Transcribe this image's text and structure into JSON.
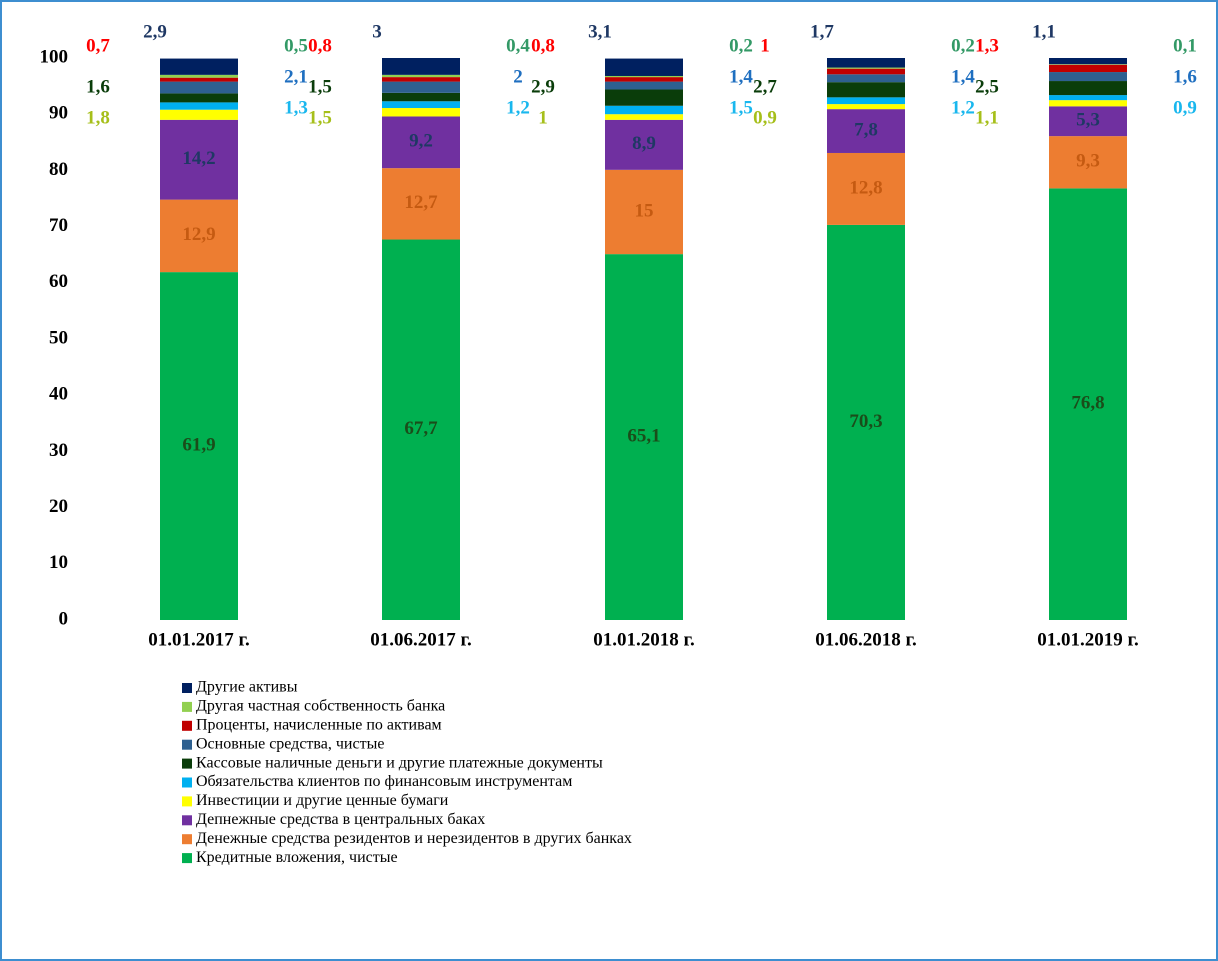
{
  "chart_data": {
    "type": "stacked_bar",
    "categories": [
      "01.01.2017 г.",
      "01.06.2017 г.",
      "01.01.2018 г.",
      "01.06.2018 г.",
      "01.01.2019 г."
    ],
    "ylim": [
      0,
      100
    ],
    "yticks": [
      0,
      10,
      20,
      30,
      40,
      50,
      60,
      70,
      80,
      90,
      100
    ],
    "grid": false,
    "series": [
      {
        "name": "Кредитные вложения, чистые",
        "color": "#00b050",
        "values": [
          61.9,
          67.7,
          65.1,
          70.3,
          76.8
        ],
        "value_labels": [
          "61,9",
          "67,7",
          "65,1",
          "70,3",
          "76,8"
        ]
      },
      {
        "name": "Денежные средства резидентов и нерезидентов в других банках",
        "color": "#ed7d31",
        "values": [
          12.9,
          12.7,
          15,
          12.8,
          9.3
        ],
        "value_labels": [
          "12,9",
          "12,7",
          "15",
          "12,8",
          "9,3"
        ]
      },
      {
        "name": "Депнежные средства в центральных баках",
        "color": "#7030a0",
        "values": [
          14.2,
          9.2,
          8.9,
          7.8,
          5.3
        ],
        "value_labels": [
          "14,2",
          "9,2",
          "8,9",
          "7,8",
          "5,3"
        ]
      },
      {
        "name": "Инвестиции и другие ценные бумаги",
        "color": "#ffff00",
        "values": [
          1.8,
          1.5,
          1,
          0.9,
          1.1
        ],
        "value_labels": [
          "1,8",
          "1,5",
          "1",
          "0,9",
          "1,1"
        ]
      },
      {
        "name": "Обязательства клиентов по финансовым инструментам",
        "color": "#00b0f0",
        "values": [
          1.3,
          1.2,
          1.5,
          1.2,
          0.9
        ],
        "value_labels": [
          "1,3",
          "1,2",
          "1,5",
          "1,2",
          "0,9"
        ]
      },
      {
        "name": "Кассовые наличные деньги и другие платежные документы",
        "color": "#0a3d0a",
        "values": [
          1.6,
          1.5,
          2.9,
          2.7,
          2.5
        ],
        "value_labels": [
          "1,6",
          "1,5",
          "2,9",
          "2,7",
          "2,5"
        ]
      },
      {
        "name": "Основные средства, чистые",
        "color": "#2e6090",
        "values": [
          2.1,
          2,
          1.4,
          1.4,
          1.6
        ],
        "value_labels": [
          "2,1",
          "2",
          "1,4",
          "1,4",
          "1,6"
        ]
      },
      {
        "name": "Проценты, начисленные по активам",
        "color": "#c00000",
        "values": [
          0.7,
          0.8,
          0.8,
          1,
          1.3
        ],
        "value_labels": [
          "0,7",
          "0,8",
          "0,8",
          "1",
          "1,3"
        ]
      },
      {
        "name": "Другая частная собственность банка",
        "color": "#92d050",
        "values": [
          0.5,
          0.4,
          0.2,
          0.2,
          0.1
        ],
        "value_labels": [
          "0,5",
          "0,4",
          "0,2",
          "0,2",
          "0,1"
        ]
      },
      {
        "name": "Другие активы",
        "color": "#002060",
        "values": [
          2.9,
          3,
          3.1,
          1.7,
          1.1
        ],
        "value_labels": [
          "2,9",
          "3",
          "3,1",
          "1,7",
          "1,1"
        ]
      }
    ]
  }
}
